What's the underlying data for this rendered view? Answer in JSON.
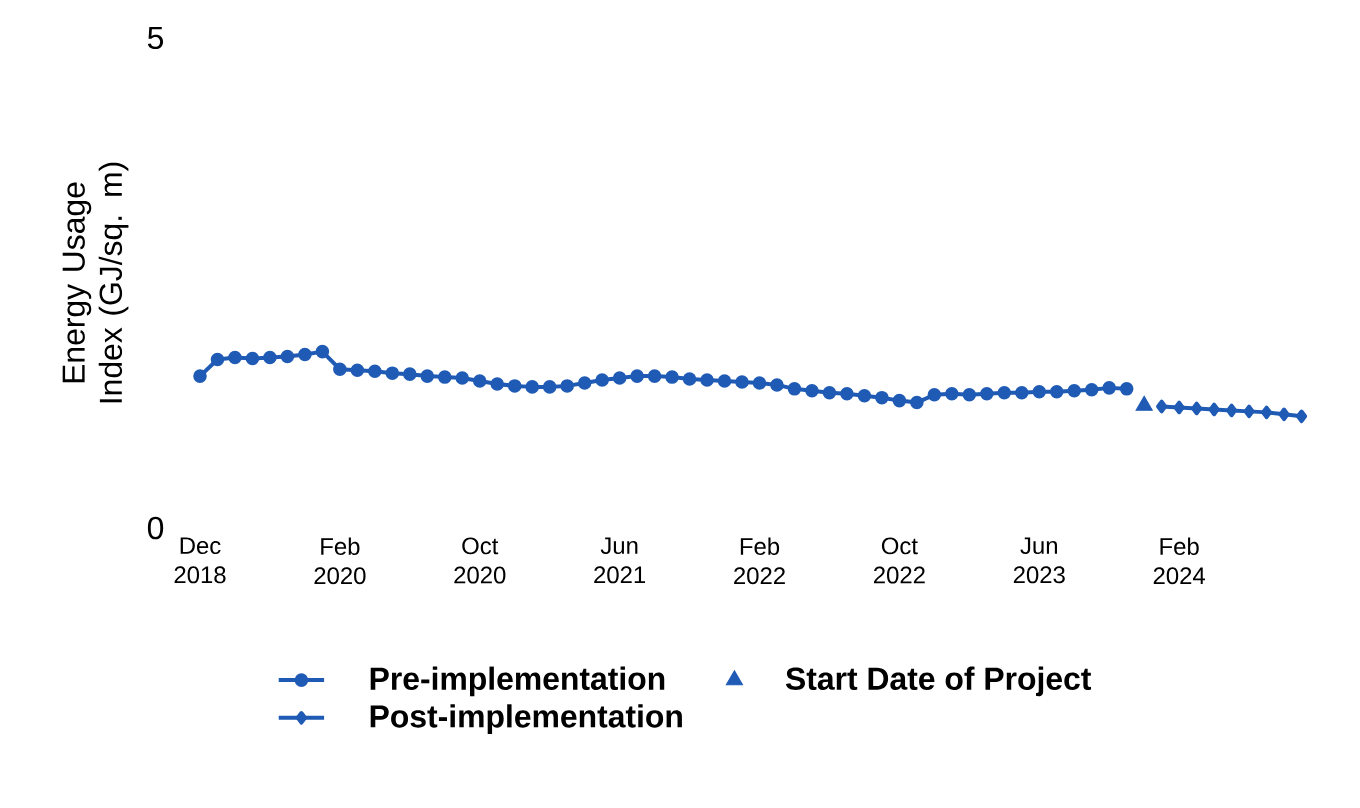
{
  "chart_data": {
    "type": "line",
    "ylabel": "Energy Usage Index (GJ/sq. m)",
    "categories": [
      "Dec 2018",
      null,
      null,
      null,
      null,
      null,
      null,
      null,
      "Feb 2020",
      null,
      null,
      null,
      null,
      null,
      null,
      null,
      "Oct 2020",
      null,
      null,
      null,
      null,
      null,
      null,
      null,
      "Jun 2021",
      null,
      null,
      null,
      null,
      null,
      null,
      null,
      "Feb 2022",
      null,
      null,
      null,
      null,
      null,
      null,
      null,
      "Oct 2022",
      null,
      null,
      null,
      null,
      null,
      null,
      null,
      "Jun 2023",
      null,
      null,
      null,
      null,
      null,
      null,
      null,
      "Feb 2024",
      null,
      null,
      null,
      null,
      null,
      null,
      null
    ],
    "series": [
      {
        "name": "Pre-implementation",
        "color": "#1f5bb5",
        "marker": "circle",
        "values": [
          1.55,
          1.72,
          1.74,
          1.73,
          1.74,
          1.75,
          1.77,
          1.8,
          1.62,
          1.61,
          1.6,
          1.58,
          1.57,
          1.55,
          1.54,
          1.53,
          1.5,
          1.47,
          1.45,
          1.44,
          1.44,
          1.45,
          1.48,
          1.51,
          1.53,
          1.55,
          1.55,
          1.54,
          1.52,
          1.51,
          1.5,
          1.49,
          1.48,
          1.46,
          1.42,
          1.4,
          1.38,
          1.37,
          1.35,
          1.33,
          1.3,
          1.28,
          1.36,
          1.37,
          1.36,
          1.37,
          1.38,
          1.38,
          1.39,
          1.39,
          1.4,
          1.41,
          1.43,
          1.42,
          null,
          null,
          null,
          null,
          null,
          null,
          null,
          null,
          null,
          null
        ]
      },
      {
        "name": "Start Date of Project",
        "color": "#1f5bb5",
        "type": "scatter",
        "marker": "triangle",
        "values": [
          null,
          null,
          null,
          null,
          null,
          null,
          null,
          null,
          null,
          null,
          null,
          null,
          null,
          null,
          null,
          null,
          null,
          null,
          null,
          null,
          null,
          null,
          null,
          null,
          null,
          null,
          null,
          null,
          null,
          null,
          null,
          null,
          null,
          null,
          null,
          null,
          null,
          null,
          null,
          null,
          null,
          null,
          null,
          null,
          null,
          null,
          null,
          null,
          null,
          null,
          null,
          null,
          null,
          null,
          1.25,
          null,
          null,
          null,
          null,
          null,
          null,
          null,
          null,
          null
        ]
      },
      {
        "name": "Post-implementation",
        "color": "#1f5bb5",
        "marker": "diamond",
        "values": [
          null,
          null,
          null,
          null,
          null,
          null,
          null,
          null,
          null,
          null,
          null,
          null,
          null,
          null,
          null,
          null,
          null,
          null,
          null,
          null,
          null,
          null,
          null,
          null,
          null,
          null,
          null,
          null,
          null,
          null,
          null,
          null,
          null,
          null,
          null,
          null,
          null,
          null,
          null,
          null,
          null,
          null,
          null,
          null,
          null,
          null,
          null,
          null,
          null,
          null,
          null,
          null,
          null,
          null,
          null,
          1.24,
          1.23,
          1.22,
          1.21,
          1.2,
          1.19,
          1.18,
          1.16,
          1.14
        ]
      }
    ],
    "ylim": [
      0,
      5
    ],
    "yticks": [
      0,
      5
    ],
    "grid": false,
    "legend": "bottom"
  }
}
